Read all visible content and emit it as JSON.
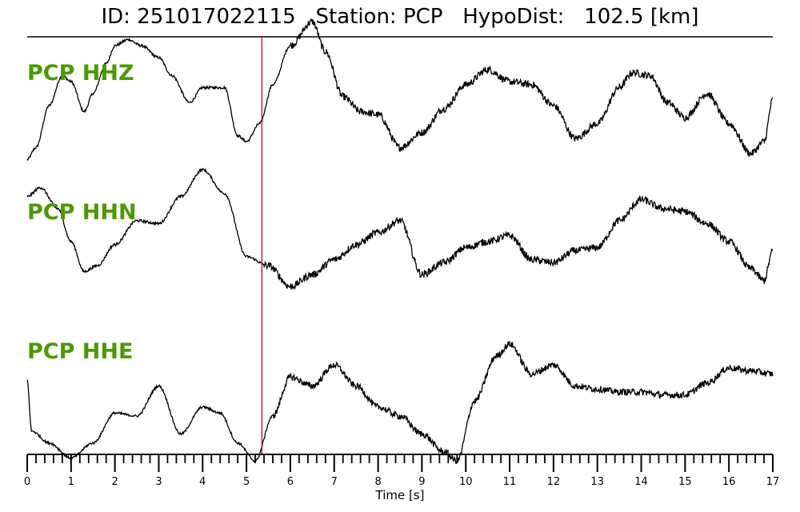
{
  "header": {
    "title": "ID: 251017022115   Station: PCP   HypoDist:   102.5 [km]"
  },
  "chart_data": {
    "type": "line",
    "xlabel": "Time [s]",
    "xlim": [
      0,
      17
    ],
    "x_major_ticks": [
      0,
      1,
      2,
      3,
      4,
      5,
      6,
      7,
      8,
      9,
      10,
      11,
      12,
      13,
      14,
      15,
      16,
      17
    ],
    "x_minor_step": 0.2,
    "pick_time": 5.35,
    "pick_color": "#e00000",
    "label_color": "#4c9900",
    "series": [
      {
        "name": "PCP HHZ",
        "noise": 0.06,
        "noise_from": 6.0,
        "x": [
          0,
          0.2,
          0.5,
          0.8,
          1.0,
          1.3,
          1.5,
          1.8,
          2.0,
          2.3,
          2.6,
          3.0,
          3.3,
          3.7,
          4.0,
          4.5,
          4.8,
          5.0,
          5.3,
          5.6,
          6.0,
          6.5,
          6.8,
          7.2,
          7.6,
          8.0,
          8.5,
          9.0,
          9.5,
          10.0,
          10.5,
          11.0,
          11.5,
          12.0,
          12.5,
          13.0,
          13.5,
          13.8,
          14.2,
          14.6,
          15.0,
          15.5,
          16.0,
          16.5,
          16.8,
          17.0
        ],
        "y": [
          -0.9,
          -0.7,
          0.0,
          0.5,
          0.4,
          -0.1,
          0.2,
          0.7,
          1.0,
          1.1,
          1.0,
          0.8,
          0.5,
          0.05,
          0.3,
          0.3,
          -0.5,
          -0.6,
          -0.3,
          0.35,
          1.0,
          1.4,
          0.9,
          0.15,
          -0.1,
          -0.15,
          -0.7,
          -0.45,
          -0.05,
          0.35,
          0.6,
          0.4,
          0.35,
          0.0,
          -0.55,
          -0.3,
          0.3,
          0.55,
          0.5,
          0.05,
          -0.2,
          0.2,
          -0.3,
          -0.8,
          -0.6,
          0.1
        ]
      },
      {
        "name": "PCP HHN",
        "noise": 0.06,
        "noise_from": 5.4,
        "x": [
          0,
          0.3,
          0.7,
          1.0,
          1.3,
          1.6,
          2.0,
          2.5,
          3.0,
          3.5,
          4.0,
          4.5,
          5.0,
          5.5,
          6.0,
          6.5,
          7.0,
          7.5,
          8.0,
          8.5,
          9.0,
          9.5,
          10.0,
          10.5,
          11.0,
          11.5,
          12.0,
          12.5,
          13.0,
          13.5,
          14.0,
          14.5,
          15.0,
          15.5,
          16.0,
          16.5,
          16.8,
          17.0
        ],
        "y": [
          0.75,
          0.9,
          0.55,
          0.0,
          -0.5,
          -0.4,
          -0.05,
          0.35,
          0.3,
          0.75,
          1.2,
          0.8,
          -0.25,
          -0.4,
          -0.75,
          -0.55,
          -0.3,
          -0.05,
          0.15,
          0.35,
          -0.55,
          -0.35,
          -0.1,
          0.0,
          0.1,
          -0.3,
          -0.35,
          -0.15,
          -0.1,
          0.35,
          0.7,
          0.55,
          0.5,
          0.3,
          0.0,
          -0.45,
          -0.65,
          -0.15
        ]
      },
      {
        "name": "PCP HHE",
        "noise": 0.055,
        "noise_from": 5.6,
        "x": [
          0,
          0.1,
          0.5,
          1.0,
          1.5,
          2.0,
          2.5,
          3.0,
          3.5,
          4.0,
          4.4,
          4.8,
          5.2,
          5.6,
          6.0,
          6.5,
          7.0,
          7.5,
          8.0,
          8.5,
          9.0,
          9.5,
          9.8,
          10.2,
          10.7,
          11.0,
          11.5,
          12.0,
          12.5,
          13.0,
          13.5,
          14.0,
          14.5,
          15.0,
          15.5,
          16.0,
          16.5,
          17.0
        ],
        "y": [
          0.4,
          -0.45,
          -0.65,
          -0.9,
          -0.65,
          -0.15,
          -0.2,
          0.3,
          -0.5,
          -0.05,
          -0.15,
          -0.65,
          -0.95,
          -0.2,
          0.45,
          0.3,
          0.65,
          0.3,
          -0.05,
          -0.2,
          -0.5,
          -0.8,
          -0.95,
          0.05,
          0.8,
          1.0,
          0.5,
          0.65,
          0.3,
          0.25,
          0.2,
          0.2,
          0.15,
          0.15,
          0.35,
          0.6,
          0.55,
          0.5
        ]
      }
    ]
  }
}
